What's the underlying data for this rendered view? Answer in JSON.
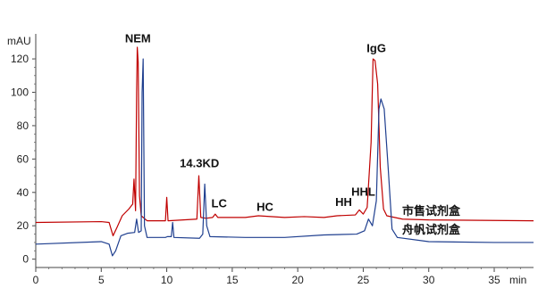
{
  "chart_data": {
    "type": "line",
    "title": "",
    "xlabel": "",
    "ylabel": "",
    "y_unit": "mAU",
    "x_unit": "min",
    "xlim": [
      0,
      38
    ],
    "ylim": [
      -5,
      135
    ],
    "x_ticks": [
      0,
      5,
      10,
      15,
      20,
      25,
      30,
      35
    ],
    "y_ticks": [
      0,
      20,
      40,
      60,
      80,
      100,
      120
    ],
    "grid": false,
    "legend": "inline-right",
    "series": [
      {
        "name": "市售试剂盒",
        "color": "#c00000",
        "points": [
          [
            0,
            22
          ],
          [
            5,
            22.5
          ],
          [
            5.6,
            22
          ],
          [
            5.9,
            14
          ],
          [
            6.2,
            19
          ],
          [
            6.6,
            26
          ],
          [
            7.1,
            30
          ],
          [
            7.4,
            33
          ],
          [
            7.5,
            48
          ],
          [
            7.62,
            29
          ],
          [
            7.7,
            100
          ],
          [
            7.75,
            127
          ],
          [
            7.82,
            118
          ],
          [
            7.92,
            38
          ],
          [
            8.05,
            26
          ],
          [
            8.5,
            23
          ],
          [
            9.9,
            23
          ],
          [
            10.0,
            37
          ],
          [
            10.1,
            23
          ],
          [
            12.3,
            24
          ],
          [
            12.45,
            50
          ],
          [
            12.6,
            25
          ],
          [
            13.0,
            24.5
          ],
          [
            13.5,
            25
          ],
          [
            13.7,
            27
          ],
          [
            13.9,
            25
          ],
          [
            16,
            25
          ],
          [
            17,
            26
          ],
          [
            19,
            25
          ],
          [
            20.5,
            25.5
          ],
          [
            22,
            25
          ],
          [
            23,
            26
          ],
          [
            24.4,
            26.5
          ],
          [
            24.7,
            29.5
          ],
          [
            25.0,
            27
          ],
          [
            25.3,
            31
          ],
          [
            25.6,
            70
          ],
          [
            25.75,
            120
          ],
          [
            25.9,
            119
          ],
          [
            26.1,
            105
          ],
          [
            26.3,
            55
          ],
          [
            26.55,
            30
          ],
          [
            26.8,
            26
          ],
          [
            28,
            24
          ],
          [
            30,
            23.5
          ],
          [
            35,
            23.2
          ],
          [
            38,
            23
          ]
        ]
      },
      {
        "name": "舟帆试剂盒",
        "color": "#1f3f8f",
        "points": [
          [
            0,
            9
          ],
          [
            5,
            10.5
          ],
          [
            5.6,
            9
          ],
          [
            5.85,
            2
          ],
          [
            6.1,
            5
          ],
          [
            6.5,
            14
          ],
          [
            7.0,
            15.5
          ],
          [
            7.55,
            16
          ],
          [
            7.7,
            24
          ],
          [
            7.85,
            16
          ],
          [
            8.05,
            17
          ],
          [
            8.12,
            100
          ],
          [
            8.2,
            120
          ],
          [
            8.3,
            20
          ],
          [
            8.5,
            13
          ],
          [
            9.9,
            13
          ],
          [
            10.05,
            13.5
          ],
          [
            10.35,
            13.5
          ],
          [
            10.45,
            22
          ],
          [
            10.55,
            13
          ],
          [
            12.5,
            12.5
          ],
          [
            12.75,
            15
          ],
          [
            12.9,
            45
          ],
          [
            13.05,
            20
          ],
          [
            13.3,
            13.5
          ],
          [
            16,
            13
          ],
          [
            19,
            13
          ],
          [
            22,
            14.5
          ],
          [
            24.5,
            15
          ],
          [
            25.1,
            17
          ],
          [
            25.4,
            24
          ],
          [
            25.7,
            20
          ],
          [
            26.0,
            35
          ],
          [
            26.2,
            90
          ],
          [
            26.35,
            96
          ],
          [
            26.6,
            90
          ],
          [
            26.9,
            55
          ],
          [
            27.2,
            18
          ],
          [
            27.6,
            13
          ],
          [
            30,
            10.5
          ],
          [
            35,
            10
          ],
          [
            38,
            10
          ]
        ]
      }
    ],
    "annotations": [
      {
        "text": "NEM",
        "x": 7.8,
        "y": 130
      },
      {
        "text": "14.3KD",
        "x": 12.5,
        "y": 55
      },
      {
        "text": "LC",
        "x": 14.0,
        "y": 31
      },
      {
        "text": "HC",
        "x": 17.5,
        "y": 29
      },
      {
        "text": "HH",
        "x": 23.5,
        "y": 32
      },
      {
        "text": "HHL",
        "x": 25.0,
        "y": 38
      },
      {
        "text": "IgG",
        "x": 26.0,
        "y": 124
      }
    ]
  }
}
